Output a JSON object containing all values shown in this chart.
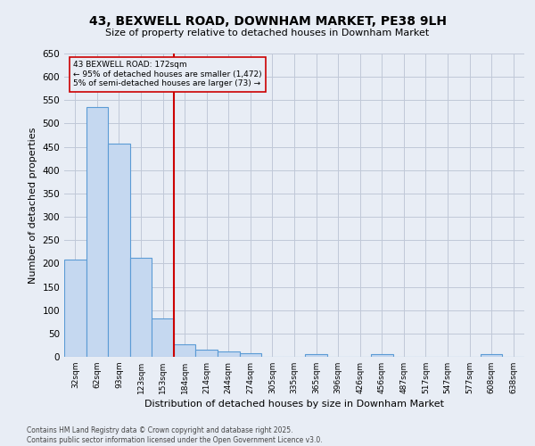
{
  "title_line1": "43, BEXWELL ROAD, DOWNHAM MARKET, PE38 9LH",
  "title_line2": "Size of property relative to detached houses in Downham Market",
  "xlabel": "Distribution of detached houses by size in Downham Market",
  "ylabel": "Number of detached properties",
  "footer_line1": "Contains HM Land Registry data © Crown copyright and database right 2025.",
  "footer_line2": "Contains public sector information licensed under the Open Government Licence v3.0.",
  "annotation_line1": "43 BEXWELL ROAD: 172sqm",
  "annotation_line2": "← 95% of detached houses are smaller (1,472)",
  "annotation_line3": "5% of semi-detached houses are larger (73) →",
  "categories": [
    "32sqm",
    "62sqm",
    "93sqm",
    "123sqm",
    "153sqm",
    "184sqm",
    "214sqm",
    "244sqm",
    "274sqm",
    "305sqm",
    "335sqm",
    "365sqm",
    "396sqm",
    "426sqm",
    "456sqm",
    "487sqm",
    "517sqm",
    "547sqm",
    "577sqm",
    "608sqm",
    "638sqm"
  ],
  "values": [
    208,
    535,
    456,
    212,
    82,
    26,
    15,
    11,
    8,
    0,
    0,
    5,
    0,
    0,
    5,
    0,
    0,
    0,
    0,
    5,
    0
  ],
  "bar_color": "#c5d8f0",
  "bar_edge_color": "#5b9bd5",
  "grid_color": "#c0c8d8",
  "background_color": "#e8edf5",
  "vline_color": "#cc0000",
  "annotation_box_edge": "#cc0000",
  "ylim": [
    0,
    650
  ],
  "yticks": [
    0,
    50,
    100,
    150,
    200,
    250,
    300,
    350,
    400,
    450,
    500,
    550,
    600,
    650
  ]
}
